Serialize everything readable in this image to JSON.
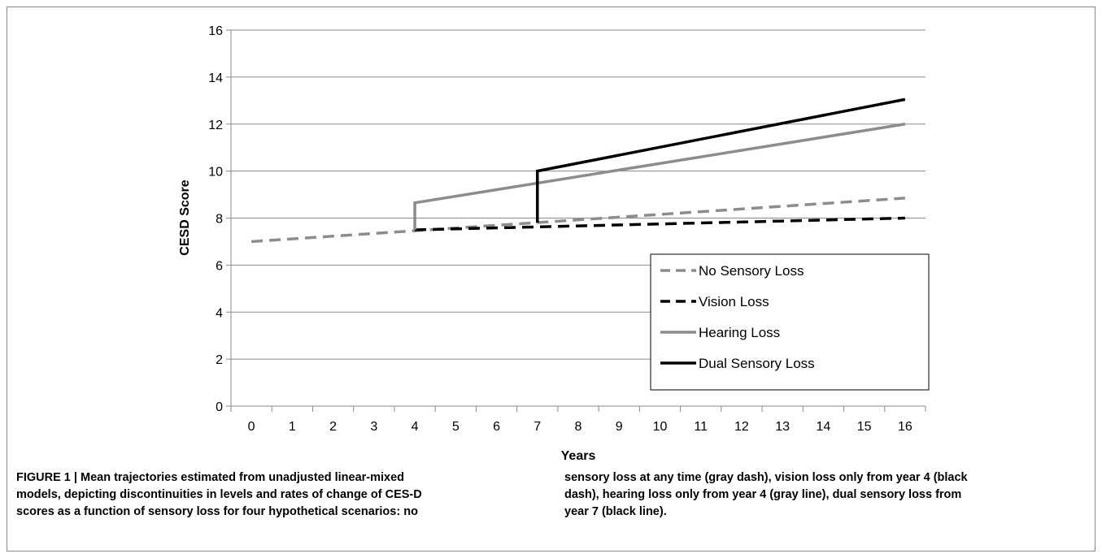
{
  "chart_data": {
    "type": "line",
    "xlabel": "Years",
    "ylabel": "CESD Score",
    "x_ticks": [
      "0",
      "1",
      "2",
      "3",
      "4",
      "5",
      "6",
      "7",
      "8",
      "9",
      "10",
      "11",
      "12",
      "13",
      "14",
      "15",
      "16"
    ],
    "y_ticks": [
      "0",
      "2",
      "4",
      "6",
      "8",
      "10",
      "12",
      "14",
      "16"
    ],
    "xlim": [
      0,
      16
    ],
    "ylim": [
      0,
      16
    ],
    "grid": "horizontal",
    "legend_position": "lower-right",
    "series": [
      {
        "name": "No Sensory Loss",
        "style": "dashed",
        "color": "#8c8c8c",
        "points": [
          [
            0,
            7.0
          ],
          [
            16,
            8.85
          ]
        ]
      },
      {
        "name": "Vision Loss",
        "style": "dashed",
        "color": "#000000",
        "points": [
          [
            4,
            7.5
          ],
          [
            16,
            8.0
          ]
        ]
      },
      {
        "name": "Hearing Loss",
        "style": "solid",
        "color": "#8c8c8c",
        "points": [
          [
            4,
            7.5
          ],
          [
            4,
            8.65
          ],
          [
            16,
            12.0
          ]
        ]
      },
      {
        "name": "Dual Sensory Loss",
        "style": "solid",
        "color": "#000000",
        "points": [
          [
            7,
            7.8
          ],
          [
            7,
            10.0
          ],
          [
            16,
            13.05
          ]
        ]
      }
    ]
  },
  "caption": {
    "left_lines": [
      "FIGURE 1 | Mean trajectories estimated from unadjusted linear-mixed",
      "models, depicting discontinuities in levels and rates of change of CES-D",
      "scores as a function of sensory loss for four hypothetical scenarios: no"
    ],
    "right_lines": [
      "sensory loss at any time (gray dash), vision loss only from year 4 (black",
      "dash), hearing loss only from year 4 (gray line), dual sensory loss from",
      "year 7 (black line)."
    ]
  }
}
